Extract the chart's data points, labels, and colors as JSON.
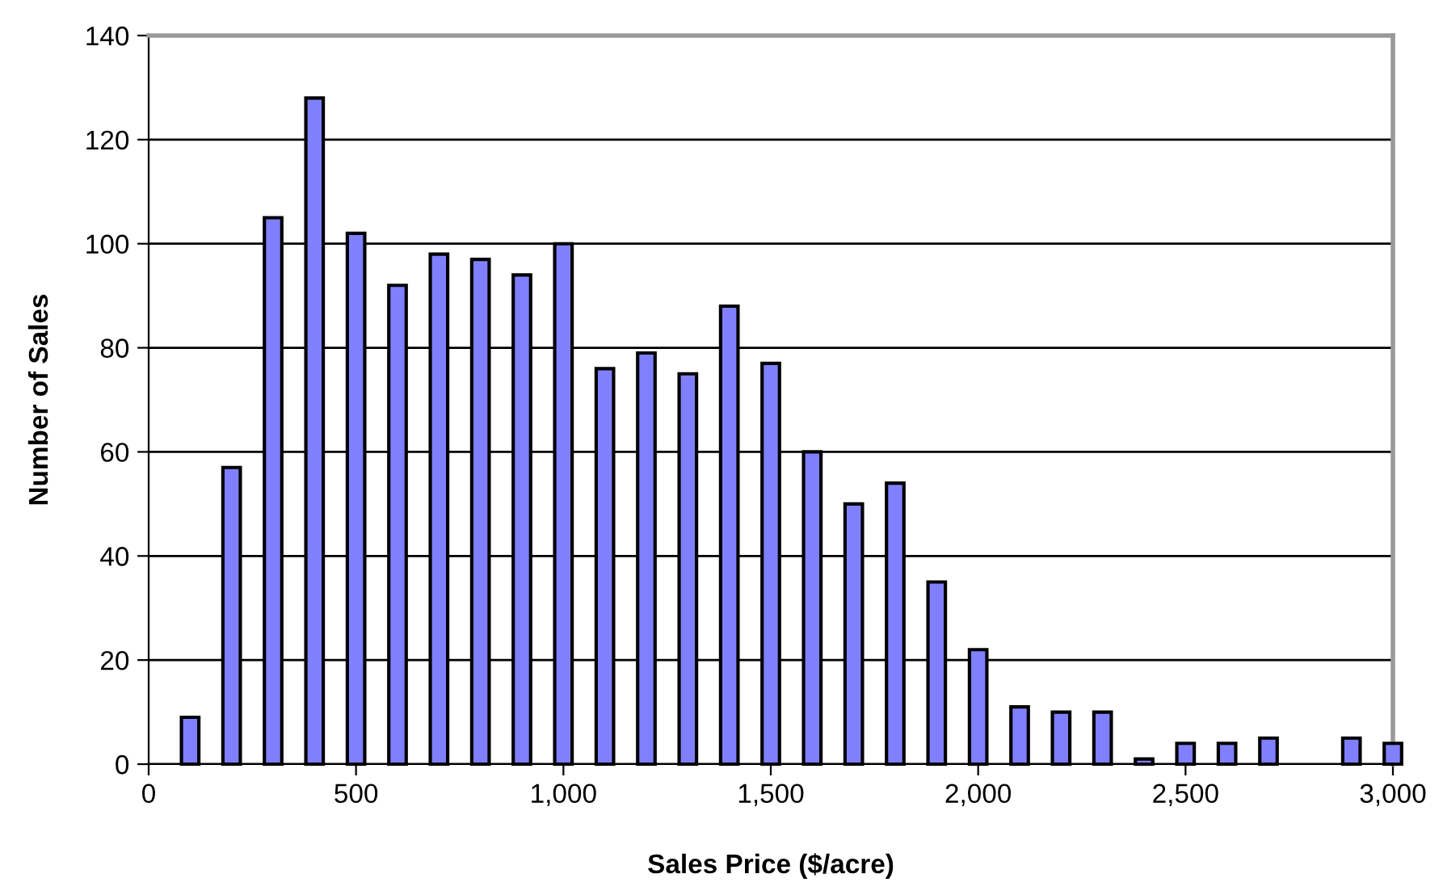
{
  "chart_data": {
    "type": "bar",
    "xlabel": "Sales Price ($/acre)",
    "ylabel": "Number of Sales",
    "x": [
      100,
      200,
      300,
      400,
      500,
      600,
      700,
      800,
      900,
      1000,
      1100,
      1200,
      1300,
      1400,
      1500,
      1600,
      1700,
      1800,
      1900,
      2000,
      2100,
      2200,
      2300,
      2400,
      2500,
      2600,
      2700,
      2800,
      2900,
      3000
    ],
    "values": [
      9,
      57,
      105,
      128,
      102,
      92,
      98,
      97,
      94,
      100,
      76,
      79,
      75,
      88,
      77,
      60,
      50,
      54,
      35,
      22,
      11,
      10,
      10,
      1,
      4,
      4,
      5,
      null,
      5,
      4
    ],
    "color": "#8080ff",
    "xlim": [
      0,
      3000
    ],
    "xticks": [
      0,
      {
        "value": 500,
        "label": "500"
      },
      {
        "value": 1000,
        "label": "1,000"
      },
      {
        "value": 1500,
        "label": "1,500"
      },
      {
        "value": 2000,
        "label": "2,000"
      },
      {
        "value": 2500,
        "label": "2,500"
      },
      {
        "value": 3000,
        "label": "3,000"
      }
    ],
    "ylim": [
      0,
      140
    ],
    "yticks": [
      0,
      20,
      40,
      60,
      80,
      100,
      120,
      140
    ],
    "grid": "y",
    "legend": false
  }
}
